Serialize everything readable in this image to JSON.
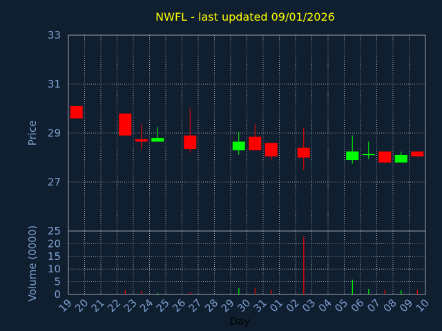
{
  "chart_data": [
    {
      "type": "candlestick",
      "title": "NWFL - last updated 09/01/2026",
      "ylabel": "Price",
      "ylim": [
        25,
        33
      ],
      "yticks": [
        "33",
        "31",
        "29",
        "27",
        "25"
      ],
      "grid": true,
      "colors": {
        "up": "#00ff00",
        "down": "#ff0000",
        "title": "#ffff00",
        "axis_text": "#7f9fcf"
      },
      "candles": [
        {
          "day": "19",
          "open": 30.1,
          "close": 29.6,
          "high": 30.1,
          "low": 29.6
        },
        {
          "day": "22",
          "open": 29.8,
          "close": 28.9,
          "high": 29.8,
          "low": 28.9
        },
        {
          "day": "23",
          "open": 28.75,
          "close": 28.65,
          "high": 29.35,
          "low": 28.35
        },
        {
          "day": "24",
          "open": 28.65,
          "close": 28.8,
          "high": 29.25,
          "low": 28.65
        },
        {
          "day": "26",
          "open": 28.9,
          "close": 28.35,
          "high": 30.0,
          "low": 28.2
        },
        {
          "day": "29",
          "open": 28.3,
          "close": 28.65,
          "high": 29.05,
          "low": 28.1
        },
        {
          "day": "30",
          "open": 28.85,
          "close": 28.3,
          "high": 29.35,
          "low": 28.3
        },
        {
          "day": "31",
          "open": 28.6,
          "close": 28.05,
          "high": 28.6,
          "low": 27.9
        },
        {
          "day": "02",
          "open": 28.4,
          "close": 28.0,
          "high": 29.2,
          "low": 27.5
        },
        {
          "day": "05",
          "open": 27.9,
          "close": 28.25,
          "high": 28.9,
          "low": 27.75
        },
        {
          "day": "06",
          "open": 28.1,
          "close": 28.15,
          "high": 28.65,
          "low": 27.95
        },
        {
          "day": "07",
          "open": 28.25,
          "close": 27.8,
          "high": 28.25,
          "low": 27.75
        },
        {
          "day": "08",
          "open": 27.8,
          "close": 28.1,
          "high": 28.25,
          "low": 27.8
        },
        {
          "day": "09",
          "open": 28.25,
          "close": 28.05,
          "high": 28.25,
          "low": 28.05
        }
      ]
    },
    {
      "type": "bar",
      "ylabel": "Volume (0000)",
      "xlabel": "Day",
      "ylim": [
        0,
        25
      ],
      "yticks": [
        "25",
        "20",
        "15",
        "10",
        "5",
        "0"
      ],
      "categories": [
        "19",
        "20",
        "21",
        "22",
        "23",
        "24",
        "25",
        "26",
        "27",
        "28",
        "29",
        "30",
        "31",
        "01",
        "02",
        "03",
        "04",
        "05",
        "06",
        "07",
        "08",
        "09",
        "10"
      ],
      "values": [
        0.1,
        0,
        0,
        1.8,
        1.4,
        0.6,
        0,
        0.9,
        0,
        0,
        2.5,
        2.6,
        1.9,
        0,
        22.8,
        0,
        0,
        5.8,
        2.2,
        1.9,
        1.6,
        1.8,
        0
      ],
      "bar_colors": [
        "#ff0000",
        "#ff0000",
        "#ff0000",
        "#ff0000",
        "#ff0000",
        "#00ff00",
        "#ff0000",
        "#ff0000",
        "#ff0000",
        "#ff0000",
        "#00ff00",
        "#ff0000",
        "#ff0000",
        "#ff0000",
        "#ff0000",
        "#ff0000",
        "#ff0000",
        "#00ff00",
        "#00ff00",
        "#ff0000",
        "#00ff00",
        "#ff0000",
        "#ff0000"
      ]
    }
  ]
}
